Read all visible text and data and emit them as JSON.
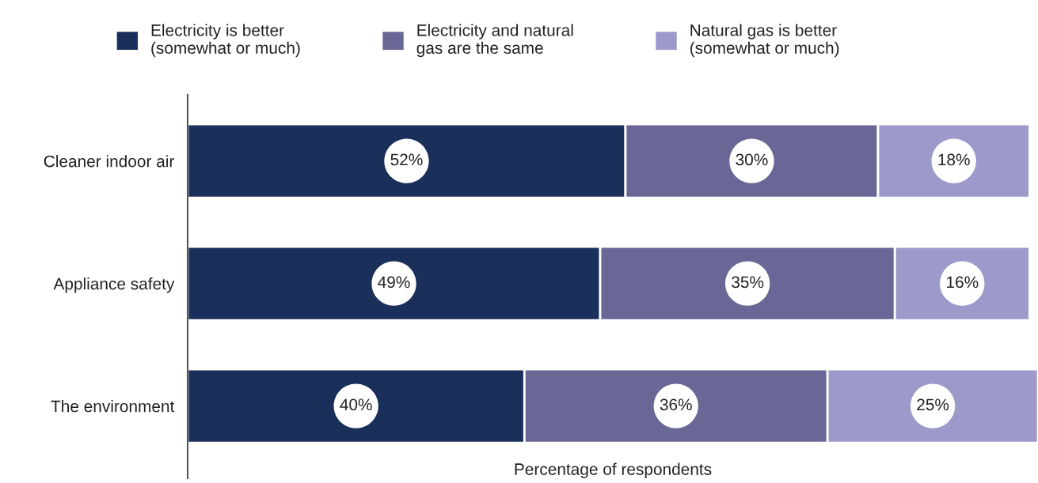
{
  "chart_data": {
    "type": "bar",
    "orientation": "horizontal",
    "stacked": true,
    "categories": [
      "Cleaner indoor air",
      "Appliance safety",
      "The environment"
    ],
    "series": [
      {
        "name": "Electricity is better\n(somewhat or much)",
        "color": "#1b2f5b",
        "values": [
          52,
          49,
          40
        ],
        "value_labels": [
          "52%",
          "49%",
          "40%"
        ]
      },
      {
        "name": "Electricity and natural\ngas are the same",
        "color": "#686796",
        "values": [
          30,
          35,
          36
        ],
        "value_labels": [
          "30%",
          "35%",
          "36%"
        ]
      },
      {
        "name": "Natural gas is better\n(somewhat or much)",
        "color": "#9b9acb",
        "values": [
          18,
          16,
          25
        ],
        "value_labels": [
          "18%",
          "16%",
          "25%"
        ]
      }
    ],
    "xlabel": "Percentage of respondents",
    "xlim": [
      0,
      101
    ],
    "tick_labels": "y",
    "grid": false,
    "legend": "top"
  }
}
